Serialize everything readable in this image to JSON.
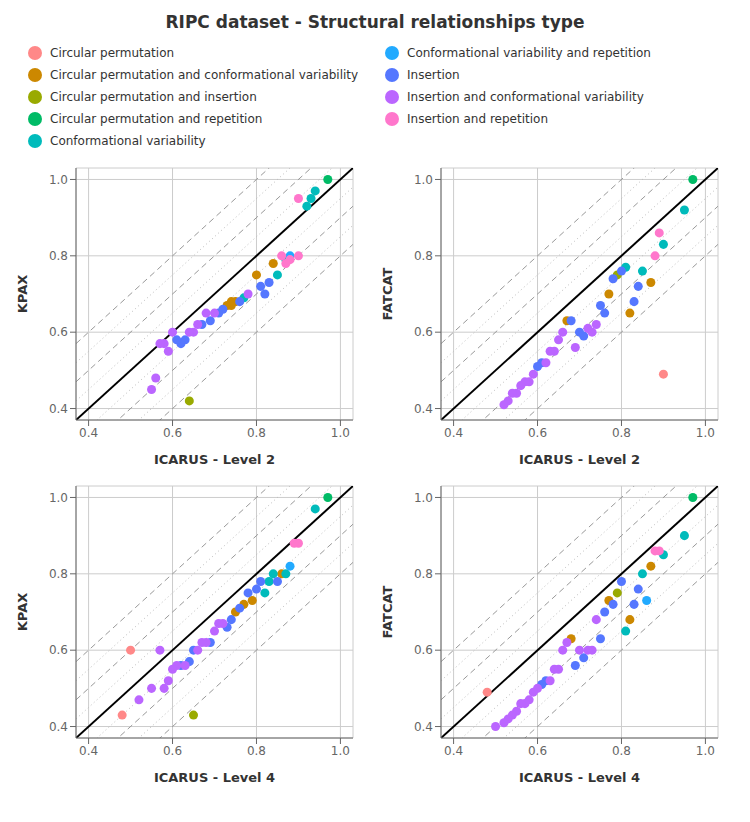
{
  "chart_data": [
    {
      "type": "scatter",
      "title": "RIPC dataset - Structural relationships type",
      "xlabel": "ICARUS - Level 2",
      "ylabel": "KPAX",
      "xlim": [
        0.37,
        1.03
      ],
      "ylim": [
        0.37,
        1.03
      ],
      "xticks": [
        0.4,
        0.6,
        0.8,
        {
          "value": 1.0,
          "label": "1.0"
        }
      ],
      "yticks": [
        0.4,
        0.6,
        0.8,
        {
          "value": 1.0,
          "label": "1.0"
        }
      ],
      "grid": true,
      "reference_lines": [
        {
          "offset": 0.1,
          "line_style": "dashed",
          "color": "#999999"
        },
        {
          "offset": -0.1,
          "line_style": "dashed",
          "color": "#999999"
        },
        {
          "offset": 0.2,
          "line_style": "dashed",
          "color": "#999999"
        },
        {
          "offset": -0.2,
          "line_style": "dashed",
          "color": "#999999"
        },
        {
          "offset": 0.05,
          "line_style": "dotted",
          "color": "#bbbbbb"
        },
        {
          "offset": -0.05,
          "line_style": "dotted",
          "color": "#bbbbbb"
        },
        {
          "offset": 0.15,
          "line_style": "dotted",
          "color": "#bbbbbb"
        },
        {
          "offset": -0.15,
          "line_style": "dotted",
          "color": "#bbbbbb"
        },
        {
          "offset": 0,
          "line_style": "solid",
          "color": "#000000"
        }
      ],
      "series": [
        {
          "name": "Circular permutation",
          "color": "#FF8888",
          "x": [],
          "values": []
        },
        {
          "name": "Circular permutation and conformational variability",
          "color": "#CC8800",
          "x": [
            0.84,
            0.8,
            0.75,
            0.74,
            0.73,
            0.74
          ],
          "values": [
            0.78,
            0.75,
            0.68,
            0.67,
            0.67,
            0.68
          ]
        },
        {
          "name": "Circular permutation and insertion",
          "color": "#99AA00",
          "x": [
            0.64
          ],
          "values": [
            0.42
          ]
        },
        {
          "name": "Circular permutation and repetition",
          "color": "#00BB66",
          "x": [
            0.97
          ],
          "values": [
            1.0
          ]
        },
        {
          "name": "Conformational variability",
          "color": "#00BBBB",
          "x": [
            0.94,
            0.93,
            0.92,
            0.87,
            0.85,
            0.77
          ],
          "values": [
            0.97,
            0.95,
            0.93,
            0.79,
            0.75,
            0.69
          ]
        },
        {
          "name": "Conformational variability and repetition",
          "color": "#22AAFF",
          "x": [
            0.88
          ],
          "values": [
            0.8
          ]
        },
        {
          "name": "Insertion",
          "color": "#5577FF",
          "x": [
            0.83,
            0.82,
            0.81,
            0.76,
            0.72,
            0.71,
            0.69,
            0.67,
            0.63,
            0.62,
            0.61
          ],
          "values": [
            0.73,
            0.7,
            0.72,
            0.68,
            0.66,
            0.65,
            0.63,
            0.62,
            0.58,
            0.57,
            0.58
          ]
        },
        {
          "name": "Insertion and conformational variability",
          "color": "#BB66FF",
          "x": [
            0.78,
            0.7,
            0.68,
            0.66,
            0.65,
            0.64,
            0.6,
            0.59,
            0.58,
            0.57,
            0.56,
            0.55
          ],
          "values": [
            0.7,
            0.65,
            0.65,
            0.62,
            0.6,
            0.6,
            0.6,
            0.55,
            0.57,
            0.57,
            0.48,
            0.45
          ]
        },
        {
          "name": "Insertion and repetition",
          "color": "#FF77CC",
          "x": [
            0.9,
            0.86,
            0.9,
            0.88,
            0.87
          ],
          "values": [
            0.95,
            0.8,
            0.8,
            0.79,
            0.78
          ]
        }
      ]
    },
    {
      "type": "scatter",
      "xlabel": "ICARUS - Level 2",
      "ylabel": "FATCAT",
      "xlim": [
        0.37,
        1.03
      ],
      "ylim": [
        0.37,
        1.03
      ],
      "xticks": [
        0.4,
        0.6,
        0.8,
        {
          "value": 1.0,
          "label": "1.0"
        }
      ],
      "yticks": [
        0.4,
        0.6,
        0.8,
        {
          "value": 1.0,
          "label": "1.0"
        }
      ],
      "grid": true,
      "reference_lines": [
        {
          "offset": 0.1,
          "line_style": "dashed",
          "color": "#999999"
        },
        {
          "offset": -0.1,
          "line_style": "dashed",
          "color": "#999999"
        },
        {
          "offset": 0.2,
          "line_style": "dashed",
          "color": "#999999"
        },
        {
          "offset": -0.2,
          "line_style": "dashed",
          "color": "#999999"
        },
        {
          "offset": 0.05,
          "line_style": "dotted",
          "color": "#bbbbbb"
        },
        {
          "offset": -0.05,
          "line_style": "dotted",
          "color": "#bbbbbb"
        },
        {
          "offset": 0.15,
          "line_style": "dotted",
          "color": "#bbbbbb"
        },
        {
          "offset": -0.15,
          "line_style": "dotted",
          "color": "#bbbbbb"
        },
        {
          "offset": 0,
          "line_style": "solid",
          "color": "#000000"
        }
      ],
      "series": [
        {
          "name": "Circular permutation",
          "color": "#FF8888",
          "x": [
            0.9
          ],
          "values": [
            0.49
          ]
        },
        {
          "name": "Circular permutation and conformational variability",
          "color": "#CC8800",
          "x": [
            0.87,
            0.82,
            0.77,
            0.67
          ],
          "values": [
            0.73,
            0.65,
            0.7,
            0.63
          ]
        },
        {
          "name": "Circular permutation and insertion",
          "color": "#99AA00",
          "x": [
            0.79
          ],
          "values": [
            0.75
          ]
        },
        {
          "name": "Circular permutation and repetition",
          "color": "#00BB66",
          "x": [
            0.97
          ],
          "values": [
            1.0
          ]
        },
        {
          "name": "Conformational variability",
          "color": "#00BBBB",
          "x": [
            0.95,
            0.9,
            0.85,
            0.81
          ],
          "values": [
            0.92,
            0.83,
            0.76,
            0.77
          ]
        },
        {
          "name": "Conformational variability and repetition",
          "color": "#22AAFF",
          "x": [],
          "values": []
        },
        {
          "name": "Insertion",
          "color": "#5577FF",
          "x": [
            0.84,
            0.83,
            0.8,
            0.78,
            0.76,
            0.75,
            0.71,
            0.7,
            0.68,
            0.61,
            0.6
          ],
          "values": [
            0.72,
            0.68,
            0.76,
            0.74,
            0.65,
            0.67,
            0.59,
            0.6,
            0.63,
            0.52,
            0.51
          ]
        },
        {
          "name": "Insertion and conformational variability",
          "color": "#BB66FF",
          "x": [
            0.74,
            0.73,
            0.72,
            0.69,
            0.66,
            0.65,
            0.64,
            0.63,
            0.62,
            0.59,
            0.58,
            0.57,
            0.56,
            0.55,
            0.54,
            0.53,
            0.52
          ],
          "values": [
            0.62,
            0.6,
            0.61,
            0.56,
            0.6,
            0.58,
            0.55,
            0.55,
            0.52,
            0.49,
            0.47,
            0.47,
            0.46,
            0.44,
            0.44,
            0.42,
            0.41
          ]
        },
        {
          "name": "Insertion and repetition",
          "color": "#FF77CC",
          "x": [
            0.89,
            0.88
          ],
          "values": [
            0.86,
            0.8
          ]
        }
      ]
    },
    {
      "type": "scatter",
      "xlabel": "ICARUS - Level 4",
      "ylabel": "KPAX",
      "xlim": [
        0.37,
        1.03
      ],
      "ylim": [
        0.37,
        1.03
      ],
      "xticks": [
        0.4,
        0.6,
        0.8,
        {
          "value": 1.0,
          "label": "1.0"
        }
      ],
      "yticks": [
        0.4,
        0.6,
        0.8,
        {
          "value": 1.0,
          "label": "1.0"
        }
      ],
      "grid": true,
      "reference_lines": [
        {
          "offset": 0.1,
          "line_style": "dashed",
          "color": "#999999"
        },
        {
          "offset": -0.1,
          "line_style": "dashed",
          "color": "#999999"
        },
        {
          "offset": 0.2,
          "line_style": "dashed",
          "color": "#999999"
        },
        {
          "offset": -0.2,
          "line_style": "dashed",
          "color": "#999999"
        },
        {
          "offset": 0.05,
          "line_style": "dotted",
          "color": "#bbbbbb"
        },
        {
          "offset": -0.05,
          "line_style": "dotted",
          "color": "#bbbbbb"
        },
        {
          "offset": 0.15,
          "line_style": "dotted",
          "color": "#bbbbbb"
        },
        {
          "offset": -0.15,
          "line_style": "dotted",
          "color": "#bbbbbb"
        },
        {
          "offset": 0,
          "line_style": "solid",
          "color": "#000000"
        }
      ],
      "series": [
        {
          "name": "Circular permutation",
          "color": "#FF8888",
          "x": [
            0.5,
            0.48
          ],
          "values": [
            0.6,
            0.43
          ]
        },
        {
          "name": "Circular permutation and conformational variability",
          "color": "#CC8800",
          "x": [
            0.86,
            0.79,
            0.77,
            0.75
          ],
          "values": [
            0.8,
            0.73,
            0.72,
            0.7
          ]
        },
        {
          "name": "Circular permutation and insertion",
          "color": "#99AA00",
          "x": [
            0.65
          ],
          "values": [
            0.43
          ]
        },
        {
          "name": "Circular permutation and repetition",
          "color": "#00BB66",
          "x": [
            0.97
          ],
          "values": [
            1.0
          ]
        },
        {
          "name": "Conformational variability",
          "color": "#00BBBB",
          "x": [
            0.94,
            0.87,
            0.84,
            0.83,
            0.82
          ],
          "values": [
            0.97,
            0.8,
            0.8,
            0.78,
            0.75
          ]
        },
        {
          "name": "Conformational variability and repetition",
          "color": "#22AAFF",
          "x": [
            0.88
          ],
          "values": [
            0.82
          ]
        },
        {
          "name": "Insertion",
          "color": "#5577FF",
          "x": [
            0.85,
            0.81,
            0.8,
            0.78,
            0.76,
            0.74,
            0.73,
            0.69,
            0.65,
            0.64,
            0.62
          ],
          "values": [
            0.78,
            0.78,
            0.76,
            0.75,
            0.71,
            0.68,
            0.66,
            0.62,
            0.6,
            0.57,
            0.56
          ]
        },
        {
          "name": "Insertion and conformational variability",
          "color": "#BB66FF",
          "x": [
            0.72,
            0.71,
            0.7,
            0.68,
            0.67,
            0.66,
            0.63,
            0.61,
            0.6,
            0.59,
            0.58,
            0.57,
            0.55,
            0.52
          ],
          "values": [
            0.67,
            0.67,
            0.65,
            0.62,
            0.62,
            0.6,
            0.56,
            0.56,
            0.55,
            0.52,
            0.5,
            0.6,
            0.5,
            0.47
          ]
        },
        {
          "name": "Insertion and repetition",
          "color": "#FF77CC",
          "x": [
            0.9,
            0.89
          ],
          "values": [
            0.88,
            0.88
          ]
        }
      ]
    },
    {
      "type": "scatter",
      "xlabel": "ICARUS - Level 4",
      "ylabel": "FATCAT",
      "xlim": [
        0.37,
        1.03
      ],
      "ylim": [
        0.37,
        1.03
      ],
      "xticks": [
        0.4,
        0.6,
        0.8,
        {
          "value": 1.0,
          "label": "1.0"
        }
      ],
      "yticks": [
        0.4,
        0.6,
        0.8,
        {
          "value": 1.0,
          "label": "1.0"
        }
      ],
      "grid": true,
      "reference_lines": [
        {
          "offset": 0.1,
          "line_style": "dashed",
          "color": "#999999"
        },
        {
          "offset": -0.1,
          "line_style": "dashed",
          "color": "#999999"
        },
        {
          "offset": 0.2,
          "line_style": "dashed",
          "color": "#999999"
        },
        {
          "offset": -0.2,
          "line_style": "dashed",
          "color": "#999999"
        },
        {
          "offset": 0.05,
          "line_style": "dotted",
          "color": "#bbbbbb"
        },
        {
          "offset": -0.05,
          "line_style": "dotted",
          "color": "#bbbbbb"
        },
        {
          "offset": 0.15,
          "line_style": "dotted",
          "color": "#bbbbbb"
        },
        {
          "offset": -0.15,
          "line_style": "dotted",
          "color": "#bbbbbb"
        },
        {
          "offset": 0,
          "line_style": "solid",
          "color": "#000000"
        }
      ],
      "series": [
        {
          "name": "Circular permutation",
          "color": "#FF8888",
          "x": [
            0.48
          ],
          "values": [
            0.49
          ]
        },
        {
          "name": "Circular permutation and conformational variability",
          "color": "#CC8800",
          "x": [
            0.87,
            0.82,
            0.77,
            0.68
          ],
          "values": [
            0.82,
            0.68,
            0.73,
            0.63
          ]
        },
        {
          "name": "Circular permutation and insertion",
          "color": "#99AA00",
          "x": [
            0.79
          ],
          "values": [
            0.75
          ]
        },
        {
          "name": "Circular permutation and repetition",
          "color": "#00BB66",
          "x": [
            0.97
          ],
          "values": [
            1.0
          ]
        },
        {
          "name": "Conformational variability",
          "color": "#00BBBB",
          "x": [
            0.95,
            0.9,
            0.85,
            0.81
          ],
          "values": [
            0.9,
            0.85,
            0.8,
            0.65
          ]
        },
        {
          "name": "Conformational variability and repetition",
          "color": "#22AAFF",
          "x": [
            0.86
          ],
          "values": [
            0.73
          ]
        },
        {
          "name": "Insertion",
          "color": "#5577FF",
          "x": [
            0.84,
            0.83,
            0.8,
            0.78,
            0.76,
            0.75,
            0.71,
            0.69,
            0.62,
            0.61
          ],
          "values": [
            0.76,
            0.72,
            0.78,
            0.72,
            0.7,
            0.63,
            0.58,
            0.56,
            0.52,
            0.51
          ]
        },
        {
          "name": "Insertion and conformational variability",
          "color": "#BB66FF",
          "x": [
            0.74,
            0.73,
            0.72,
            0.7,
            0.67,
            0.66,
            0.65,
            0.64,
            0.63,
            0.6,
            0.59,
            0.58,
            0.57,
            0.56,
            0.55,
            0.54,
            0.53,
            0.52,
            0.5
          ],
          "values": [
            0.68,
            0.6,
            0.6,
            0.6,
            0.62,
            0.6,
            0.55,
            0.55,
            0.52,
            0.5,
            0.49,
            0.47,
            0.46,
            0.46,
            0.44,
            0.43,
            0.42,
            0.41,
            0.4
          ]
        },
        {
          "name": "Insertion and repetition",
          "color": "#FF77CC",
          "x": [
            0.89,
            0.88
          ],
          "values": [
            0.86,
            0.86
          ]
        }
      ]
    }
  ]
}
